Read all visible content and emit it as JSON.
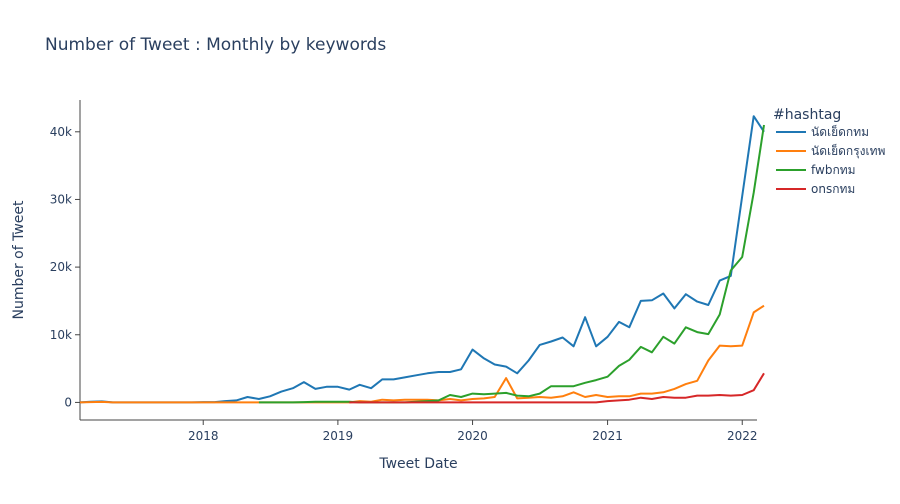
{
  "chart_data": {
    "type": "line",
    "title": "Number of Tweet : Monthly by keywords",
    "xlabel": "Tweet Date",
    "ylabel": "Number of Tweet",
    "xlim": [
      "2017-02-01",
      "2022-02-10"
    ],
    "ylim": [
      -2600,
      44700
    ],
    "x_ticks": [
      "2018",
      "2019",
      "2020",
      "2021",
      "2022"
    ],
    "y_ticks": [
      {
        "value": 0,
        "label": "0"
      },
      {
        "value": 10000,
        "label": "10k"
      },
      {
        "value": 20000,
        "label": "20k"
      },
      {
        "value": 30000,
        "label": "30k"
      },
      {
        "value": 40000,
        "label": "40k"
      }
    ],
    "grid": false,
    "legend_title": "#hashtag",
    "legend_position": "top-right",
    "series": [
      {
        "name": "นัดเย็ดกทม",
        "color": "#1f77b4",
        "points": [
          [
            "2017-02",
            0
          ],
          [
            "2017-03",
            100
          ],
          [
            "2017-04",
            150
          ],
          [
            "2017-05",
            0
          ],
          [
            "2017-06",
            0
          ],
          [
            "2017-07",
            0
          ],
          [
            "2017-08",
            0
          ],
          [
            "2017-09",
            0
          ],
          [
            "2017-10",
            0
          ],
          [
            "2017-11",
            0
          ],
          [
            "2017-12",
            0
          ],
          [
            "2018-01",
            50
          ],
          [
            "2018-02",
            50
          ],
          [
            "2018-03",
            200
          ],
          [
            "2018-04",
            300
          ],
          [
            "2018-05",
            800
          ],
          [
            "2018-06",
            500
          ],
          [
            "2018-07",
            900
          ],
          [
            "2018-08",
            1600
          ],
          [
            "2018-09",
            2100
          ],
          [
            "2018-10",
            3000
          ],
          [
            "2018-11",
            2000
          ],
          [
            "2018-12",
            2300
          ],
          [
            "2019-01",
            2300
          ],
          [
            "2019-02",
            1900
          ],
          [
            "2019-03",
            2600
          ],
          [
            "2019-04",
            2100
          ],
          [
            "2019-05",
            3400
          ],
          [
            "2019-06",
            3400
          ],
          [
            "2019-07",
            3700
          ],
          [
            "2019-08",
            4000
          ],
          [
            "2019-09",
            4300
          ],
          [
            "2019-10",
            4500
          ],
          [
            "2019-11",
            4500
          ],
          [
            "2019-12",
            4900
          ],
          [
            "2020-01",
            7800
          ],
          [
            "2020-02",
            6500
          ],
          [
            "2020-03",
            5600
          ],
          [
            "2020-04",
            5300
          ],
          [
            "2020-05",
            4300
          ],
          [
            "2020-06",
            6200
          ],
          [
            "2020-07",
            8500
          ],
          [
            "2020-08",
            9000
          ],
          [
            "2020-09",
            9600
          ],
          [
            "2020-10",
            8300
          ],
          [
            "2020-11",
            12600
          ],
          [
            "2020-12",
            8300
          ],
          [
            "2021-01",
            9700
          ],
          [
            "2021-02",
            11900
          ],
          [
            "2021-03",
            11100
          ],
          [
            "2021-04",
            15000
          ],
          [
            "2021-05",
            15100
          ],
          [
            "2021-06",
            16100
          ],
          [
            "2021-07",
            13900
          ],
          [
            "2021-08",
            16000
          ],
          [
            "2021-09",
            14900
          ],
          [
            "2021-10",
            14400
          ],
          [
            "2021-11",
            18000
          ],
          [
            "2021-12",
            18700
          ],
          [
            "2022-01",
            30500
          ],
          [
            "2022-02",
            42300
          ],
          [
            "2022-03",
            40000
          ]
        ]
      },
      {
        "name": "นัดเย็ดกรุงเทพ",
        "color": "#ff7f0e",
        "points": [
          [
            "2017-02",
            0
          ],
          [
            "2017-03",
            50
          ],
          [
            "2017-04",
            80
          ],
          [
            "2017-05",
            0
          ],
          [
            "2017-06",
            0
          ],
          [
            "2017-07",
            0
          ],
          [
            "2017-08",
            0
          ],
          [
            "2017-09",
            0
          ],
          [
            "2017-10",
            0
          ],
          [
            "2017-11",
            0
          ],
          [
            "2017-12",
            0
          ],
          [
            "2018-01",
            0
          ],
          [
            "2018-02",
            0
          ],
          [
            "2018-03",
            0
          ],
          [
            "2018-04",
            0
          ],
          [
            "2018-05",
            0
          ],
          [
            "2018-06",
            0
          ],
          [
            "2018-07",
            0
          ],
          [
            "2018-08",
            0
          ],
          [
            "2018-09",
            0
          ],
          [
            "2018-10",
            0
          ],
          [
            "2018-11",
            0
          ],
          [
            "2018-12",
            0
          ],
          [
            "2019-01",
            0
          ],
          [
            "2019-02",
            0
          ],
          [
            "2019-03",
            200
          ],
          [
            "2019-04",
            100
          ],
          [
            "2019-05",
            400
          ],
          [
            "2019-06",
            300
          ],
          [
            "2019-07",
            400
          ],
          [
            "2019-08",
            400
          ],
          [
            "2019-09",
            400
          ],
          [
            "2019-10",
            300
          ],
          [
            "2019-11",
            500
          ],
          [
            "2019-12",
            300
          ],
          [
            "2020-01",
            500
          ],
          [
            "2020-02",
            600
          ],
          [
            "2020-03",
            800
          ],
          [
            "2020-04",
            3600
          ],
          [
            "2020-05",
            600
          ],
          [
            "2020-06",
            700
          ],
          [
            "2020-07",
            800
          ],
          [
            "2020-08",
            700
          ],
          [
            "2020-09",
            900
          ],
          [
            "2020-10",
            1500
          ],
          [
            "2020-11",
            800
          ],
          [
            "2020-12",
            1100
          ],
          [
            "2021-01",
            800
          ],
          [
            "2021-02",
            900
          ],
          [
            "2021-03",
            900
          ],
          [
            "2021-04",
            1300
          ],
          [
            "2021-05",
            1300
          ],
          [
            "2021-06",
            1500
          ],
          [
            "2021-07",
            2000
          ],
          [
            "2021-08",
            2700
          ],
          [
            "2021-09",
            3200
          ],
          [
            "2021-10",
            6200
          ],
          [
            "2021-11",
            8400
          ],
          [
            "2021-12",
            8300
          ],
          [
            "2022-01",
            8400
          ],
          [
            "2022-02",
            13300
          ],
          [
            "2022-03",
            14300
          ]
        ]
      },
      {
        "name": "fwbกทม",
        "color": "#2ca02c",
        "points": [
          [
            "2018-06",
            0
          ],
          [
            "2018-07",
            0
          ],
          [
            "2018-08",
            0
          ],
          [
            "2018-09",
            0
          ],
          [
            "2018-10",
            50
          ],
          [
            "2018-11",
            100
          ],
          [
            "2018-12",
            100
          ],
          [
            "2019-01",
            100
          ],
          [
            "2019-02",
            100
          ],
          [
            "2019-03",
            0
          ],
          [
            "2019-04",
            0
          ],
          [
            "2019-05",
            0
          ],
          [
            "2019-06",
            0
          ],
          [
            "2019-07",
            0
          ],
          [
            "2019-08",
            100
          ],
          [
            "2019-09",
            200
          ],
          [
            "2019-10",
            300
          ],
          [
            "2019-11",
            1100
          ],
          [
            "2019-12",
            800
          ],
          [
            "2020-01",
            1300
          ],
          [
            "2020-02",
            1200
          ],
          [
            "2020-03",
            1300
          ],
          [
            "2020-04",
            1400
          ],
          [
            "2020-05",
            1000
          ],
          [
            "2020-06",
            900
          ],
          [
            "2020-07",
            1300
          ],
          [
            "2020-08",
            2400
          ],
          [
            "2020-09",
            2400
          ],
          [
            "2020-10",
            2400
          ],
          [
            "2020-11",
            2900
          ],
          [
            "2020-12",
            3300
          ],
          [
            "2021-01",
            3800
          ],
          [
            "2021-02",
            5400
          ],
          [
            "2021-03",
            6300
          ],
          [
            "2021-04",
            8200
          ],
          [
            "2021-05",
            7400
          ],
          [
            "2021-06",
            9700
          ],
          [
            "2021-07",
            8700
          ],
          [
            "2021-08",
            11100
          ],
          [
            "2021-09",
            10400
          ],
          [
            "2021-10",
            10100
          ],
          [
            "2021-11",
            13000
          ],
          [
            "2021-12",
            19500
          ],
          [
            "2022-01",
            21500
          ],
          [
            "2022-02",
            31000
          ],
          [
            "2022-03",
            41000
          ]
        ]
      },
      {
        "name": "onsกทม",
        "color": "#d62728",
        "points": [
          [
            "2019-02",
            0
          ],
          [
            "2019-03",
            0
          ],
          [
            "2019-04",
            0
          ],
          [
            "2019-05",
            0
          ],
          [
            "2019-06",
            0
          ],
          [
            "2019-07",
            0
          ],
          [
            "2019-08",
            0
          ],
          [
            "2019-09",
            0
          ],
          [
            "2019-10",
            0
          ],
          [
            "2019-11",
            0
          ],
          [
            "2019-12",
            0
          ],
          [
            "2020-01",
            0
          ],
          [
            "2020-02",
            0
          ],
          [
            "2020-03",
            0
          ],
          [
            "2020-04",
            0
          ],
          [
            "2020-05",
            0
          ],
          [
            "2020-06",
            0
          ],
          [
            "2020-07",
            0
          ],
          [
            "2020-08",
            0
          ],
          [
            "2020-09",
            0
          ],
          [
            "2020-10",
            0
          ],
          [
            "2020-11",
            0
          ],
          [
            "2020-12",
            0
          ],
          [
            "2021-01",
            200
          ],
          [
            "2021-02",
            300
          ],
          [
            "2021-03",
            400
          ],
          [
            "2021-04",
            700
          ],
          [
            "2021-05",
            500
          ],
          [
            "2021-06",
            800
          ],
          [
            "2021-07",
            700
          ],
          [
            "2021-08",
            700
          ],
          [
            "2021-09",
            1000
          ],
          [
            "2021-10",
            1000
          ],
          [
            "2021-11",
            1100
          ],
          [
            "2021-12",
            1000
          ],
          [
            "2022-01",
            1100
          ],
          [
            "2022-02",
            1800
          ],
          [
            "2022-03",
            4300
          ]
        ]
      }
    ]
  }
}
